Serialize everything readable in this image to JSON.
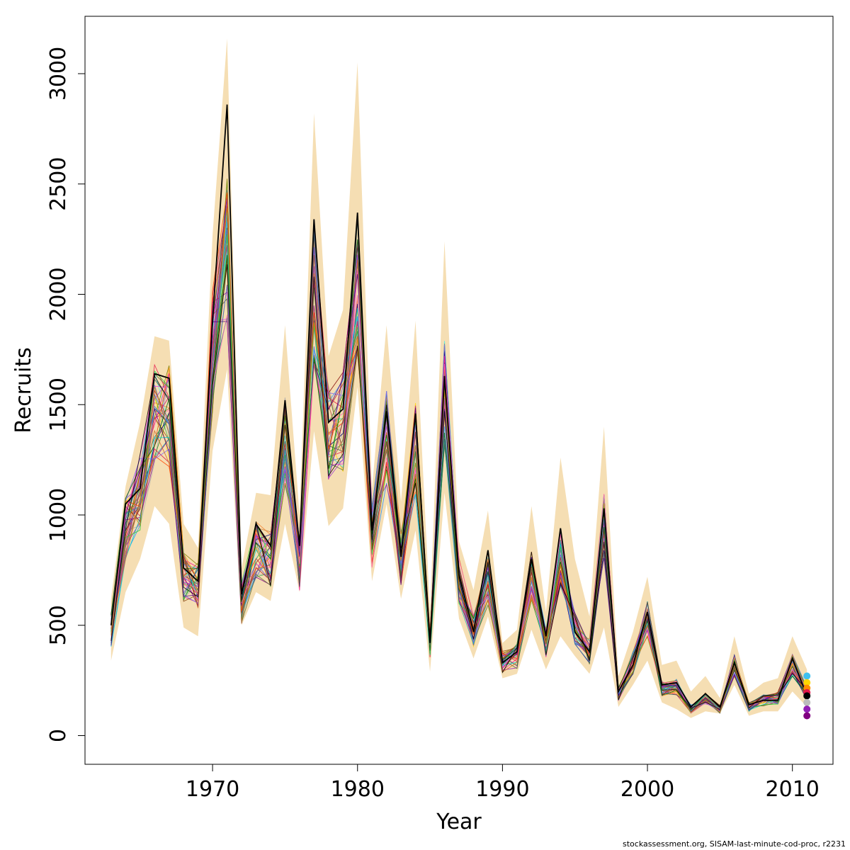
{
  "chart_data": {
    "type": "line",
    "title": "",
    "xlabel": "Year",
    "ylabel": "Recruits",
    "xlim": [
      1961.2,
      2012.8
    ],
    "ylim": [
      -130,
      3260
    ],
    "x_ticks": [
      1970,
      1980,
      1990,
      2000,
      2010
    ],
    "y_ticks": [
      0,
      500,
      1000,
      1500,
      2000,
      2500,
      3000
    ],
    "grid": false,
    "legend": "none",
    "band_color": "#F5DEB3",
    "band": {
      "years": [
        1963,
        1964,
        1965,
        1966,
        1967,
        1968,
        1969,
        1970,
        1971,
        1972,
        1973,
        1974,
        1975,
        1976,
        1977,
        1978,
        1979,
        1980,
        1981,
        1982,
        1983,
        1984,
        1985,
        1986,
        1987,
        1988,
        1989,
        1990,
        1991,
        1992,
        1993,
        1994,
        1995,
        1996,
        1997,
        1998,
        1999,
        2000,
        2001,
        2002,
        2003,
        2004,
        2005,
        2006,
        2007,
        2008,
        2009,
        2010,
        2011
      ],
      "lower": [
        340,
        650,
        800,
        1040,
        960,
        490,
        450,
        1290,
        1660,
        500,
        650,
        610,
        960,
        650,
        1380,
        950,
        1030,
        1580,
        700,
        1050,
        620,
        930,
        290,
        1100,
        530,
        350,
        540,
        260,
        280,
        480,
        300,
        450,
        360,
        280,
        490,
        130,
        230,
        340,
        150,
        120,
        80,
        110,
        100,
        230,
        90,
        110,
        110,
        200,
        130
      ],
      "upper": [
        620,
        1130,
        1420,
        1810,
        1790,
        960,
        850,
        2270,
        3160,
        760,
        1100,
        1090,
        1860,
        1000,
        2820,
        1720,
        1930,
        3050,
        1120,
        1860,
        1060,
        1880,
        560,
        2240,
        880,
        660,
        1020,
        420,
        480,
        1040,
        560,
        1260,
        800,
        540,
        1400,
        270,
        470,
        720,
        320,
        340,
        200,
        270,
        170,
        450,
        190,
        240,
        260,
        450,
        300
      ]
    },
    "years": [
      1963,
      1964,
      1965,
      1966,
      1967,
      1968,
      1969,
      1970,
      1971,
      1972,
      1973,
      1974,
      1975,
      1976,
      1977,
      1978,
      1979,
      1980,
      1981,
      1982,
      1983,
      1984,
      1985,
      1986,
      1987,
      1988,
      1989,
      1990,
      1991,
      1992,
      1993,
      1994,
      1995,
      1996,
      1997,
      1998,
      1999,
      2000,
      2001,
      2002,
      2003,
      2004,
      2005,
      2006,
      2007,
      2008,
      2009,
      2010,
      2011
    ],
    "base_series": [
      480,
      950,
      1100,
      1450,
      1450,
      720,
      680,
      1750,
      2200,
      600,
      850,
      800,
      1350,
      780,
      2000,
      1380,
      1420,
      2050,
      900,
      1350,
      800,
      1300,
      420,
      1550,
      700,
      480,
      700,
      330,
      360,
      720,
      420,
      800,
      480,
      380,
      950,
      190,
      330,
      530,
      210,
      220,
      120,
      170,
      120,
      320,
      130,
      160,
      170,
      320,
      190
    ],
    "series_colors": [
      "#e6194b",
      "#3cb44b",
      "#ffd700",
      "#4363d8",
      "#f58231",
      "#911eb4",
      "#46f0f0",
      "#f032e6",
      "#a9a9a9",
      "#008080",
      "#9a6324",
      "#800000",
      "#808000",
      "#000075",
      "#ff1493",
      "#228b22",
      "#1e90ff",
      "#dc143c",
      "#8b008b",
      "#ff8c00",
      "#2f4f4f",
      "#6a5acd",
      "#b22222",
      "#20b2aa",
      "#c71585",
      "#556b2f",
      "#cd853f",
      "#4682b4",
      "#9932cc",
      "#8b4513",
      "#00ced1",
      "#ff4500",
      "#7b68ee",
      "#32cd32",
      "#d2691e",
      "#4b0082",
      "#ff69b4",
      "#006400",
      "#b8860b",
      "#000000"
    ],
    "main_series": {
      "name": "",
      "color": "#000000",
      "values": [
        500,
        1050,
        1120,
        1640,
        1620,
        760,
        700,
        1880,
        2860,
        640,
        960,
        860,
        1520,
        860,
        2340,
        1420,
        1480,
        2370,
        930,
        1470,
        810,
        1460,
        420,
        1630,
        730,
        470,
        840,
        330,
        380,
        800,
        450,
        940,
        470,
        380,
        1030,
        200,
        320,
        560,
        230,
        240,
        130,
        190,
        130,
        330,
        140,
        160,
        160,
        350,
        180
      ]
    },
    "end_points": [
      {
        "value": 270,
        "color": "#3fc0f0"
      },
      {
        "value": 240,
        "color": "#ffd700"
      },
      {
        "value": 215,
        "color": "#ff8c00"
      },
      {
        "value": 195,
        "color": "#e6194b"
      },
      {
        "value": 180,
        "color": "#000000"
      },
      {
        "value": 150,
        "color": "#bbbbbb"
      },
      {
        "value": 120,
        "color": "#911eb4"
      },
      {
        "value": 90,
        "color": "#800080"
      }
    ]
  },
  "footer": {
    "text": "stockassessment.org, SISAM-last-minute-cod-proc, r2231"
  }
}
